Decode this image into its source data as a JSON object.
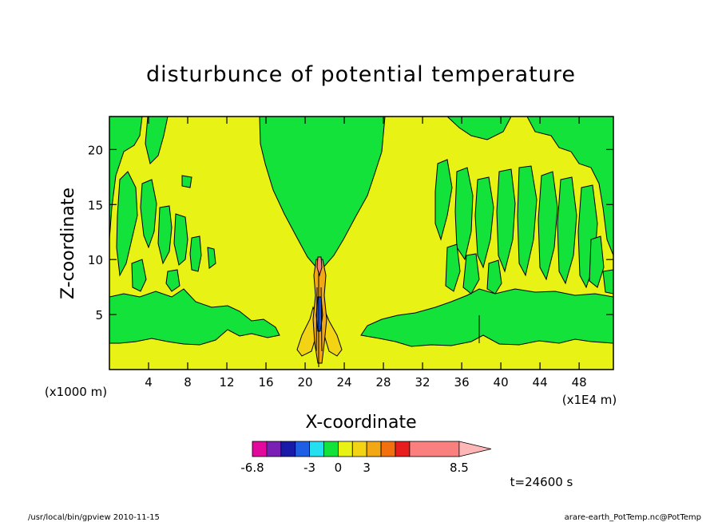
{
  "chart_data": {
    "type": "heatmap",
    "title": "disturbunce of potential temperature",
    "xlabel": "X-coordinate",
    "ylabel": "Z-coordinate",
    "x_unit_left": "(x1000 m)",
    "x_unit_right": "(x1E4 m)",
    "xlim": [
      0,
      51.5
    ],
    "ylim": [
      0,
      23
    ],
    "x_ticks": [
      4,
      8,
      12,
      16,
      20,
      24,
      28,
      32,
      36,
      40,
      44,
      48
    ],
    "y_ticks": [
      5,
      10,
      15,
      20
    ],
    "colorbar": {
      "colors": [
        "#e2099c",
        "#7a1fb4",
        "#1a1aa8",
        "#1f5fe6",
        "#22e0f0",
        "#12e23a",
        "#e8f214",
        "#f2d414",
        "#f2a814",
        "#f2700e",
        "#e81e1e",
        "#fa7f7f",
        "#ffb6b6"
      ],
      "labels": [
        "-6.8",
        "-3",
        "0",
        "3",
        "8.5"
      ],
      "label_positions": [
        0,
        4,
        6,
        8,
        11
      ]
    },
    "annotation": "t=24600 s",
    "footer_left": "/usr/local/bin/gpview   2010-11-15",
    "footer_right": "arare-earth_PotTemp.nc@PotTemp"
  }
}
